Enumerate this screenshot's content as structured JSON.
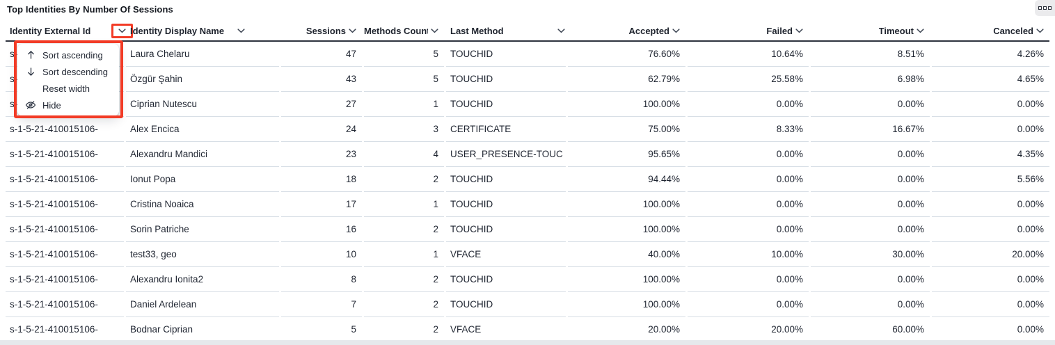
{
  "panel": {
    "title": "Top Identities By Number Of Sessions"
  },
  "table": {
    "columns": [
      {
        "label": "Identity External Id",
        "align": "left"
      },
      {
        "label": "Identity Display Name",
        "align": "left"
      },
      {
        "label": "Sessions",
        "align": "right"
      },
      {
        "label": "Methods Count",
        "align": "right"
      },
      {
        "label": "Last Method",
        "align": "left"
      },
      {
        "label": "Accepted",
        "align": "right"
      },
      {
        "label": "Failed",
        "align": "right"
      },
      {
        "label": "Timeout",
        "align": "right"
      },
      {
        "label": "Canceled",
        "align": "right"
      }
    ],
    "rows": [
      [
        "s-1-5-21-410015106-",
        "Laura Chelaru",
        "47",
        "5",
        "TOUCHID",
        "76.60%",
        "10.64%",
        "8.51%",
        "4.26%"
      ],
      [
        "s-1-5-21-410015106-",
        "Özgür Şahin",
        "43",
        "5",
        "TOUCHID",
        "62.79%",
        "25.58%",
        "6.98%",
        "4.65%"
      ],
      [
        "s-1-5-21-410015106-",
        "Ciprian Nutescu",
        "27",
        "1",
        "TOUCHID",
        "100.00%",
        "0.00%",
        "0.00%",
        "0.00%"
      ],
      [
        "s-1-5-21-410015106-",
        "Alex Encica",
        "24",
        "3",
        "CERTIFICATE",
        "75.00%",
        "8.33%",
        "16.67%",
        "0.00%"
      ],
      [
        "s-1-5-21-410015106-",
        "Alexandru Mandici",
        "23",
        "4",
        "USER_PRESENCE-TOUC",
        "95.65%",
        "0.00%",
        "0.00%",
        "4.35%"
      ],
      [
        "s-1-5-21-410015106-",
        "Ionut Popa",
        "18",
        "2",
        "TOUCHID",
        "94.44%",
        "0.00%",
        "0.00%",
        "5.56%"
      ],
      [
        "s-1-5-21-410015106-",
        "Cristina Noaica",
        "17",
        "1",
        "TOUCHID",
        "100.00%",
        "0.00%",
        "0.00%",
        "0.00%"
      ],
      [
        "s-1-5-21-410015106-",
        "Sorin Patriche",
        "16",
        "2",
        "TOUCHID",
        "100.00%",
        "0.00%",
        "0.00%",
        "0.00%"
      ],
      [
        "s-1-5-21-410015106-",
        "test33, geo",
        "10",
        "1",
        "VFACE",
        "40.00%",
        "10.00%",
        "30.00%",
        "20.00%"
      ],
      [
        "s-1-5-21-410015106-",
        "Alexandru Ionita2",
        "8",
        "2",
        "TOUCHID",
        "100.00%",
        "0.00%",
        "0.00%",
        "0.00%"
      ],
      [
        "s-1-5-21-410015106-",
        "Daniel Ardelean",
        "7",
        "2",
        "TOUCHID",
        "100.00%",
        "0.00%",
        "0.00%",
        "0.00%"
      ],
      [
        "s-1-5-21-410015106-",
        "Bodnar Ciprian",
        "5",
        "2",
        "VFACE",
        "20.00%",
        "20.00%",
        "60.00%",
        "0.00%"
      ]
    ]
  },
  "column_menu": {
    "items": [
      {
        "icon": "arrow-up",
        "label": "Sort ascending"
      },
      {
        "icon": "arrow-down",
        "label": "Sort descending"
      },
      {
        "icon": "",
        "label": "Reset width"
      },
      {
        "icon": "eye-off",
        "label": "Hide"
      }
    ]
  },
  "annotation": {
    "color": "#f23b26"
  }
}
